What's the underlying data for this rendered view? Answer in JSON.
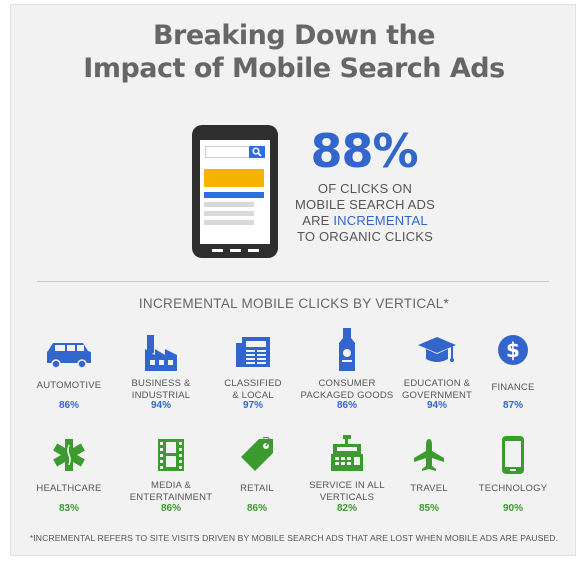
{
  "title": {
    "line1": "Breaking Down the",
    "line2": "Impact of Mobile Search Ads"
  },
  "stat": {
    "value": "88%",
    "line1": "OF CLICKS ON",
    "line2": "MOBILE SEARCH ADS",
    "line3_prefix": "ARE ",
    "line3_highlight": "INCREMENTAL",
    "line4": "TO ORGANIC CLICKS"
  },
  "section_title": "INCREMENTAL MOBILE CLICKS BY VERTICAL*",
  "colors": {
    "blue": "#3366cc",
    "green": "#3b9b2f",
    "yellow": "#f4b400",
    "phone": "#2e2e2e"
  },
  "verticals_row1": [
    {
      "icon": "car-icon",
      "label1": "AUTOMOTIVE",
      "label2": "",
      "pct": "86%"
    },
    {
      "icon": "factory-icon",
      "label1": "BUSINESS &",
      "label2": "INDUSTRIAL",
      "pct": "94%"
    },
    {
      "icon": "newspaper-icon",
      "label1": "CLASSIFIED",
      "label2": "& LOCAL",
      "pct": "97%"
    },
    {
      "icon": "bottle-icon",
      "label1": "CONSUMER",
      "label2": "PACKAGED GOODS",
      "pct": "86%"
    },
    {
      "icon": "graduation-cap-icon",
      "label1": "EDUCATION &",
      "label2": "GOVERNMENT",
      "pct": "94%"
    },
    {
      "icon": "dollar-icon",
      "label1": "FINANCE",
      "label2": "",
      "pct": "87%"
    }
  ],
  "verticals_row2": [
    {
      "icon": "medical-star-icon",
      "label1": "HEALTHCARE",
      "label2": "",
      "pct": "83%"
    },
    {
      "icon": "film-icon",
      "label1": "MEDIA &",
      "label2": "ENTERTAINMENT",
      "pct": "86%"
    },
    {
      "icon": "price-tag-icon",
      "label1": "RETAIL",
      "label2": "",
      "pct": "86%"
    },
    {
      "icon": "cash-register-icon",
      "label1": "SERVICE IN ALL",
      "label2": "VERTICALS",
      "pct": "82%"
    },
    {
      "icon": "airplane-icon",
      "label1": "TRAVEL",
      "label2": "",
      "pct": "85%"
    },
    {
      "icon": "smartphone-icon",
      "label1": "TECHNOLOGY",
      "label2": "",
      "pct": "90%"
    }
  ],
  "footnote": "*INCREMENTAL REFERS TO SITE VISITS DRIVEN BY MOBILE SEARCH ADS THAT ARE LOST WHEN MOBILE ADS ARE PAUSED."
}
